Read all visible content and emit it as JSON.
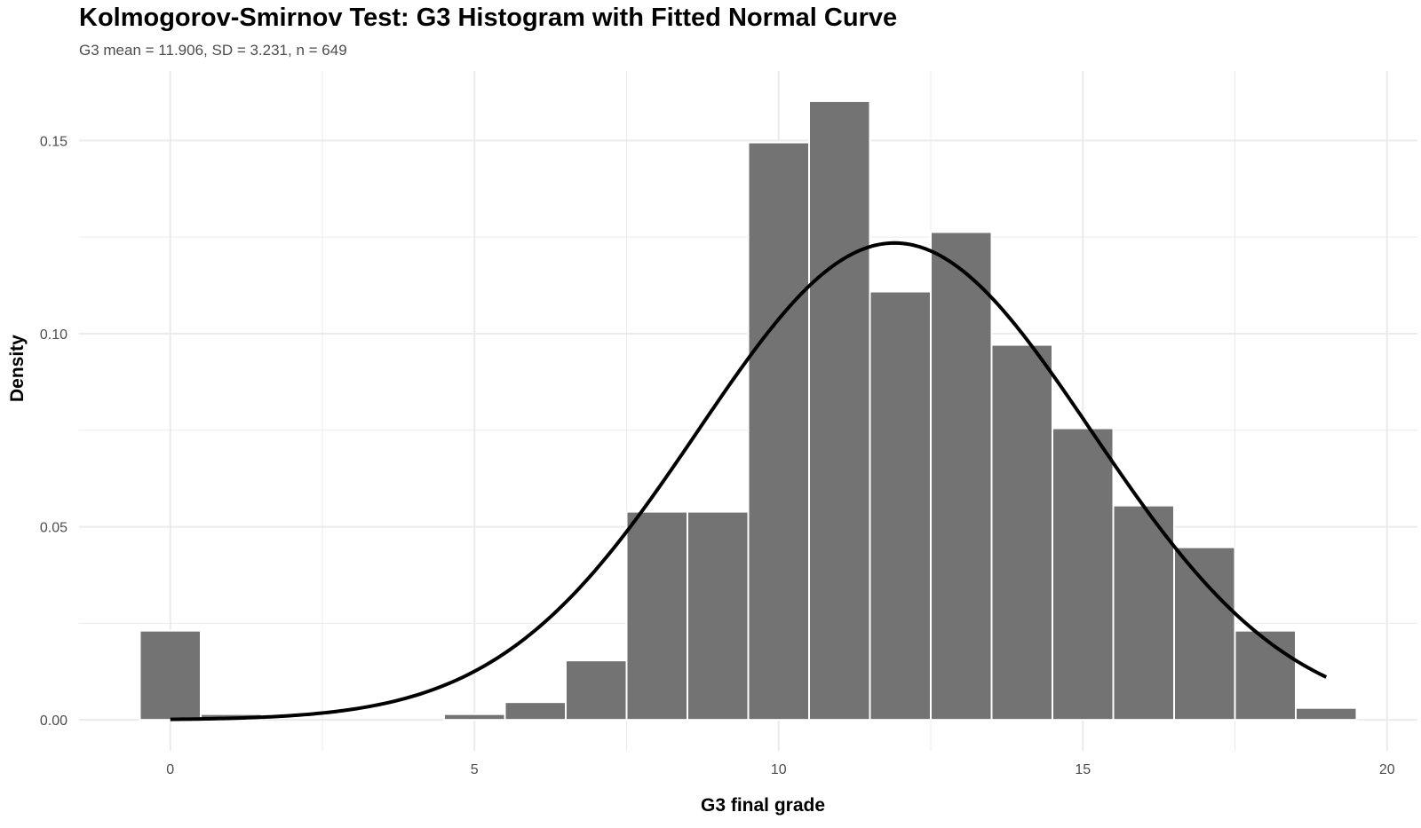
{
  "title": "Kolmogorov-Smirnov Test: G3 Histogram with Fitted Normal Curve",
  "subtitle": "G3 mean = 11.906, SD = 3.231, n = 649",
  "colors": {
    "bar": "#737373",
    "bar_edge": "#ffffff",
    "curve": "#000000",
    "grid": "#ebebeb"
  },
  "chart_data": {
    "type": "bar",
    "title": "Kolmogorov-Smirnov Test: G3 Histogram with Fitted Normal Curve",
    "subtitle": "G3 mean = 11.906, SD = 3.231, n = 649",
    "xlabel": "G3 final grade",
    "ylabel": "Density",
    "xlim": [
      -1.5,
      20.5
    ],
    "ylim": [
      -0.008,
      0.168
    ],
    "x_ticks": [
      0,
      5,
      10,
      15,
      20
    ],
    "x_tick_labels": [
      "0",
      "5",
      "10",
      "15",
      "20"
    ],
    "y_ticks": [
      0.0,
      0.05,
      0.1,
      0.15
    ],
    "y_tick_labels": [
      "0.00",
      "0.05",
      "0.10",
      "0.15"
    ],
    "bin_width": 1,
    "bins": [
      {
        "x": 0,
        "density": 0.0231
      },
      {
        "x": 1,
        "density": 0.0015
      },
      {
        "x": 2,
        "density": 0.0
      },
      {
        "x": 3,
        "density": 0.0
      },
      {
        "x": 4,
        "density": 0.0
      },
      {
        "x": 5,
        "density": 0.0015
      },
      {
        "x": 6,
        "density": 0.0046
      },
      {
        "x": 7,
        "density": 0.0154
      },
      {
        "x": 8,
        "density": 0.0539
      },
      {
        "x": 9,
        "density": 0.0539
      },
      {
        "x": 10,
        "density": 0.1495
      },
      {
        "x": 11,
        "density": 0.1602
      },
      {
        "x": 12,
        "density": 0.1109
      },
      {
        "x": 13,
        "density": 0.1263
      },
      {
        "x": 14,
        "density": 0.0971
      },
      {
        "x": 15,
        "density": 0.0755
      },
      {
        "x": 16,
        "density": 0.0555
      },
      {
        "x": 17,
        "density": 0.0447
      },
      {
        "x": 18,
        "density": 0.0231
      },
      {
        "x": 19,
        "density": 0.0031
      }
    ],
    "normal_curve": {
      "mean": 11.906,
      "sd": 3.231,
      "x_range": [
        0,
        19
      ]
    },
    "grid": true,
    "legend": "none"
  }
}
